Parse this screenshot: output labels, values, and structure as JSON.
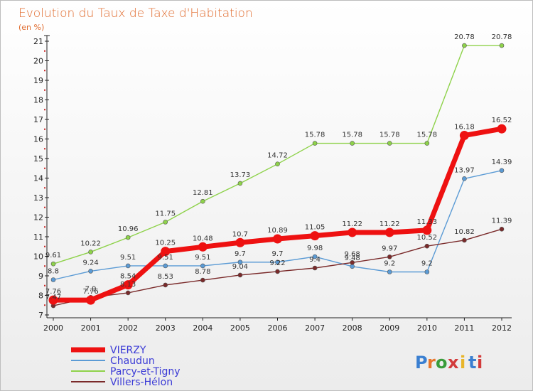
{
  "chart_data": {
    "type": "line",
    "title": "Evolution du Taux de Taxe d'Habitation",
    "unit_label": "(en %)",
    "x": [
      "2000",
      "2001",
      "2002",
      "2003",
      "2004",
      "2005",
      "2006",
      "2007",
      "2008",
      "2009",
      "2010",
      "2011",
      "2012"
    ],
    "ylim": [
      7,
      21
    ],
    "yticks": [
      7,
      8,
      9,
      10,
      11,
      12,
      13,
      14,
      15,
      16,
      17,
      18,
      19,
      20,
      21
    ],
    "grid": false,
    "legend_position": "bottom-left",
    "series": [
      {
        "name": "VIERZY",
        "color": "#ee1111",
        "emphasis": true,
        "values": [
          7.76,
          7.76,
          8.54,
          10.25,
          10.48,
          10.7,
          10.89,
          11.05,
          11.22,
          11.22,
          11.33,
          16.18,
          16.52
        ],
        "labels": [
          "7.76",
          "7.76",
          "8.54",
          "10.25",
          "10.48",
          "10.7",
          "10.89",
          "11.05",
          "11.22",
          "11.22",
          "11.33",
          "16.18",
          "16.52"
        ]
      },
      {
        "name": "Chaudun",
        "color": "#5b9bd5",
        "values": [
          8.8,
          9.24,
          9.51,
          9.51,
          9.51,
          9.7,
          9.7,
          9.98,
          9.48,
          9.2,
          9.2,
          13.97,
          14.39
        ],
        "labels": [
          "8.8",
          "9.24",
          "9.51",
          "9.51",
          "9.51",
          "9.7",
          "9.7",
          "9.98",
          "9.48",
          "9.2",
          "9.2",
          "13.97",
          "14.39"
        ]
      },
      {
        "name": "Parcy-et-Tigny",
        "color": "#8ed24a",
        "values": [
          9.61,
          10.22,
          10.96,
          11.75,
          12.81,
          13.73,
          14.72,
          15.78,
          15.78,
          15.78,
          15.78,
          20.78,
          20.78
        ],
        "labels": [
          "9.61",
          "10.22",
          "10.96",
          "11.75",
          "12.81",
          "13.73",
          "14.72",
          "15.78",
          "15.78",
          "15.78",
          "15.78",
          "20.78",
          "20.78"
        ]
      },
      {
        "name": "Villers-Hélon",
        "color": "#7a2a2a",
        "values": [
          7.47,
          7.9,
          8.13,
          8.53,
          8.78,
          9.04,
          9.22,
          9.4,
          9.68,
          9.97,
          10.52,
          10.82,
          11.39
        ],
        "labels": [
          "7.47",
          "7.9",
          "8.13",
          "8.53",
          "8.78",
          "9.04",
          "9.22",
          "9.4",
          "9.68",
          "9.97",
          "10.52",
          "10.82",
          "11.39"
        ]
      }
    ]
  },
  "logo": {
    "text": "Proxiti",
    "letters": [
      "P",
      "r",
      "o",
      "x",
      "i",
      "t",
      "i"
    ],
    "letter_colors": [
      "#3a7fd1",
      "#e8752a",
      "#3a9c3a",
      "#d23b3b",
      "#e8b52a",
      "#3a7fd1",
      "#d23b3b"
    ]
  }
}
